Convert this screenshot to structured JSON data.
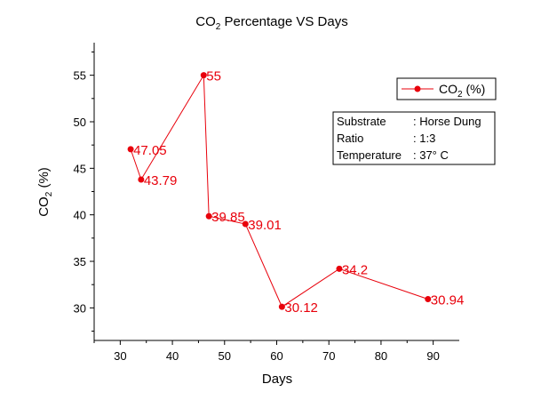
{
  "chart_data": {
    "type": "line",
    "title": "CO",
    "title_sub": "2",
    "title_rest": " Percentage VS Days",
    "xlabel": "Days",
    "ylabel_main": "CO",
    "ylabel_sub": "2",
    "ylabel_rest": " (%)",
    "xlim": [
      25,
      95
    ],
    "ylim": [
      26.5,
      58.5
    ],
    "xticks": [
      30,
      40,
      50,
      60,
      70,
      80,
      90
    ],
    "yticks": [
      30,
      35,
      40,
      45,
      50,
      55
    ],
    "grid": false,
    "legend_position": "top-right",
    "color": "#e8000b",
    "series": [
      {
        "name_main": "CO",
        "name_sub": "2",
        "name_rest": " (%)",
        "x": [
          32,
          34,
          46,
          47,
          54,
          61,
          72,
          89
        ],
        "y": [
          47.05,
          43.79,
          55,
          39.85,
          39.01,
          30.12,
          34.2,
          30.94
        ],
        "labels": [
          "47.05",
          "43.79",
          "55",
          "39.85",
          "39.01",
          "30.12",
          "34.2",
          "30.94"
        ]
      }
    ]
  },
  "info_box": {
    "rows": [
      {
        "key": "Substrate",
        "value": ": Horse Dung"
      },
      {
        "key": "Ratio",
        "value": ": 1:3"
      },
      {
        "key": "Temperature",
        "value": ": 37° C"
      }
    ]
  }
}
